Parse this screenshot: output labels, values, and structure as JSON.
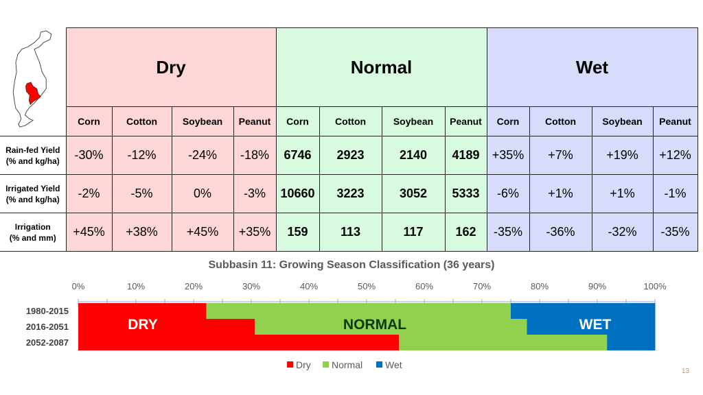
{
  "table": {
    "groups": [
      {
        "label": "Dry",
        "color": "#fdd7d7"
      },
      {
        "label": "Normal",
        "color": "#d8fbdf"
      },
      {
        "label": "Wet",
        "color": "#d6dcfa"
      }
    ],
    "crops": [
      "Corn",
      "Cotton",
      "Soybean",
      "Peanut"
    ],
    "rows": [
      {
        "label1": "Rain-fed Yield",
        "label2": "(% and kg/ha)",
        "dry": [
          "-30%",
          "-12%",
          "-24%",
          "-18%"
        ],
        "normal": [
          "6746",
          "2923",
          "2140",
          "4189"
        ],
        "wet": [
          "+35%",
          "+7%",
          "+19%",
          "+12%"
        ]
      },
      {
        "label1": "Irrigated Yield",
        "label2": "(% and kg/ha)",
        "dry": [
          "-2%",
          "-5%",
          "0%",
          "-3%"
        ],
        "normal": [
          "10660",
          "3223",
          "3052",
          "5333"
        ],
        "wet": [
          "-6%",
          "+1%",
          "+1%",
          "-1%"
        ]
      },
      {
        "label1": "Irrigation",
        "label2": "(% and mm)",
        "dry": [
          "+45%",
          "+38%",
          "+45%",
          "+35%"
        ],
        "normal": [
          "159",
          "113",
          "117",
          "162"
        ],
        "wet": [
          "-35%",
          "-36%",
          "-32%",
          "-35%"
        ]
      }
    ]
  },
  "chart_data": {
    "type": "bar",
    "orientation": "horizontal",
    "stacked": true,
    "title": "Subbasin 11: Growing Season Classification (36 years)",
    "categories": [
      "1980-2015",
      "2016-2051",
      "2052-2087"
    ],
    "series": [
      {
        "name": "Dry",
        "color": "#ff0000",
        "values": [
          22.2,
          30.6,
          55.6
        ]
      },
      {
        "name": "Normal",
        "color": "#92d050",
        "values": [
          52.8,
          47.2,
          36.1
        ]
      },
      {
        "name": "Wet",
        "color": "#0070c0",
        "values": [
          25.0,
          22.2,
          8.3
        ]
      }
    ],
    "xlim": [
      0,
      100
    ],
    "xticks": [
      "0%",
      "10%",
      "20%",
      "30%",
      "40%",
      "50%",
      "60%",
      "70%",
      "80%",
      "90%",
      "100%"
    ],
    "annotations": [
      "DRY",
      "NORMAL",
      "WET"
    ],
    "legend": "bottom"
  },
  "page_number": "13"
}
